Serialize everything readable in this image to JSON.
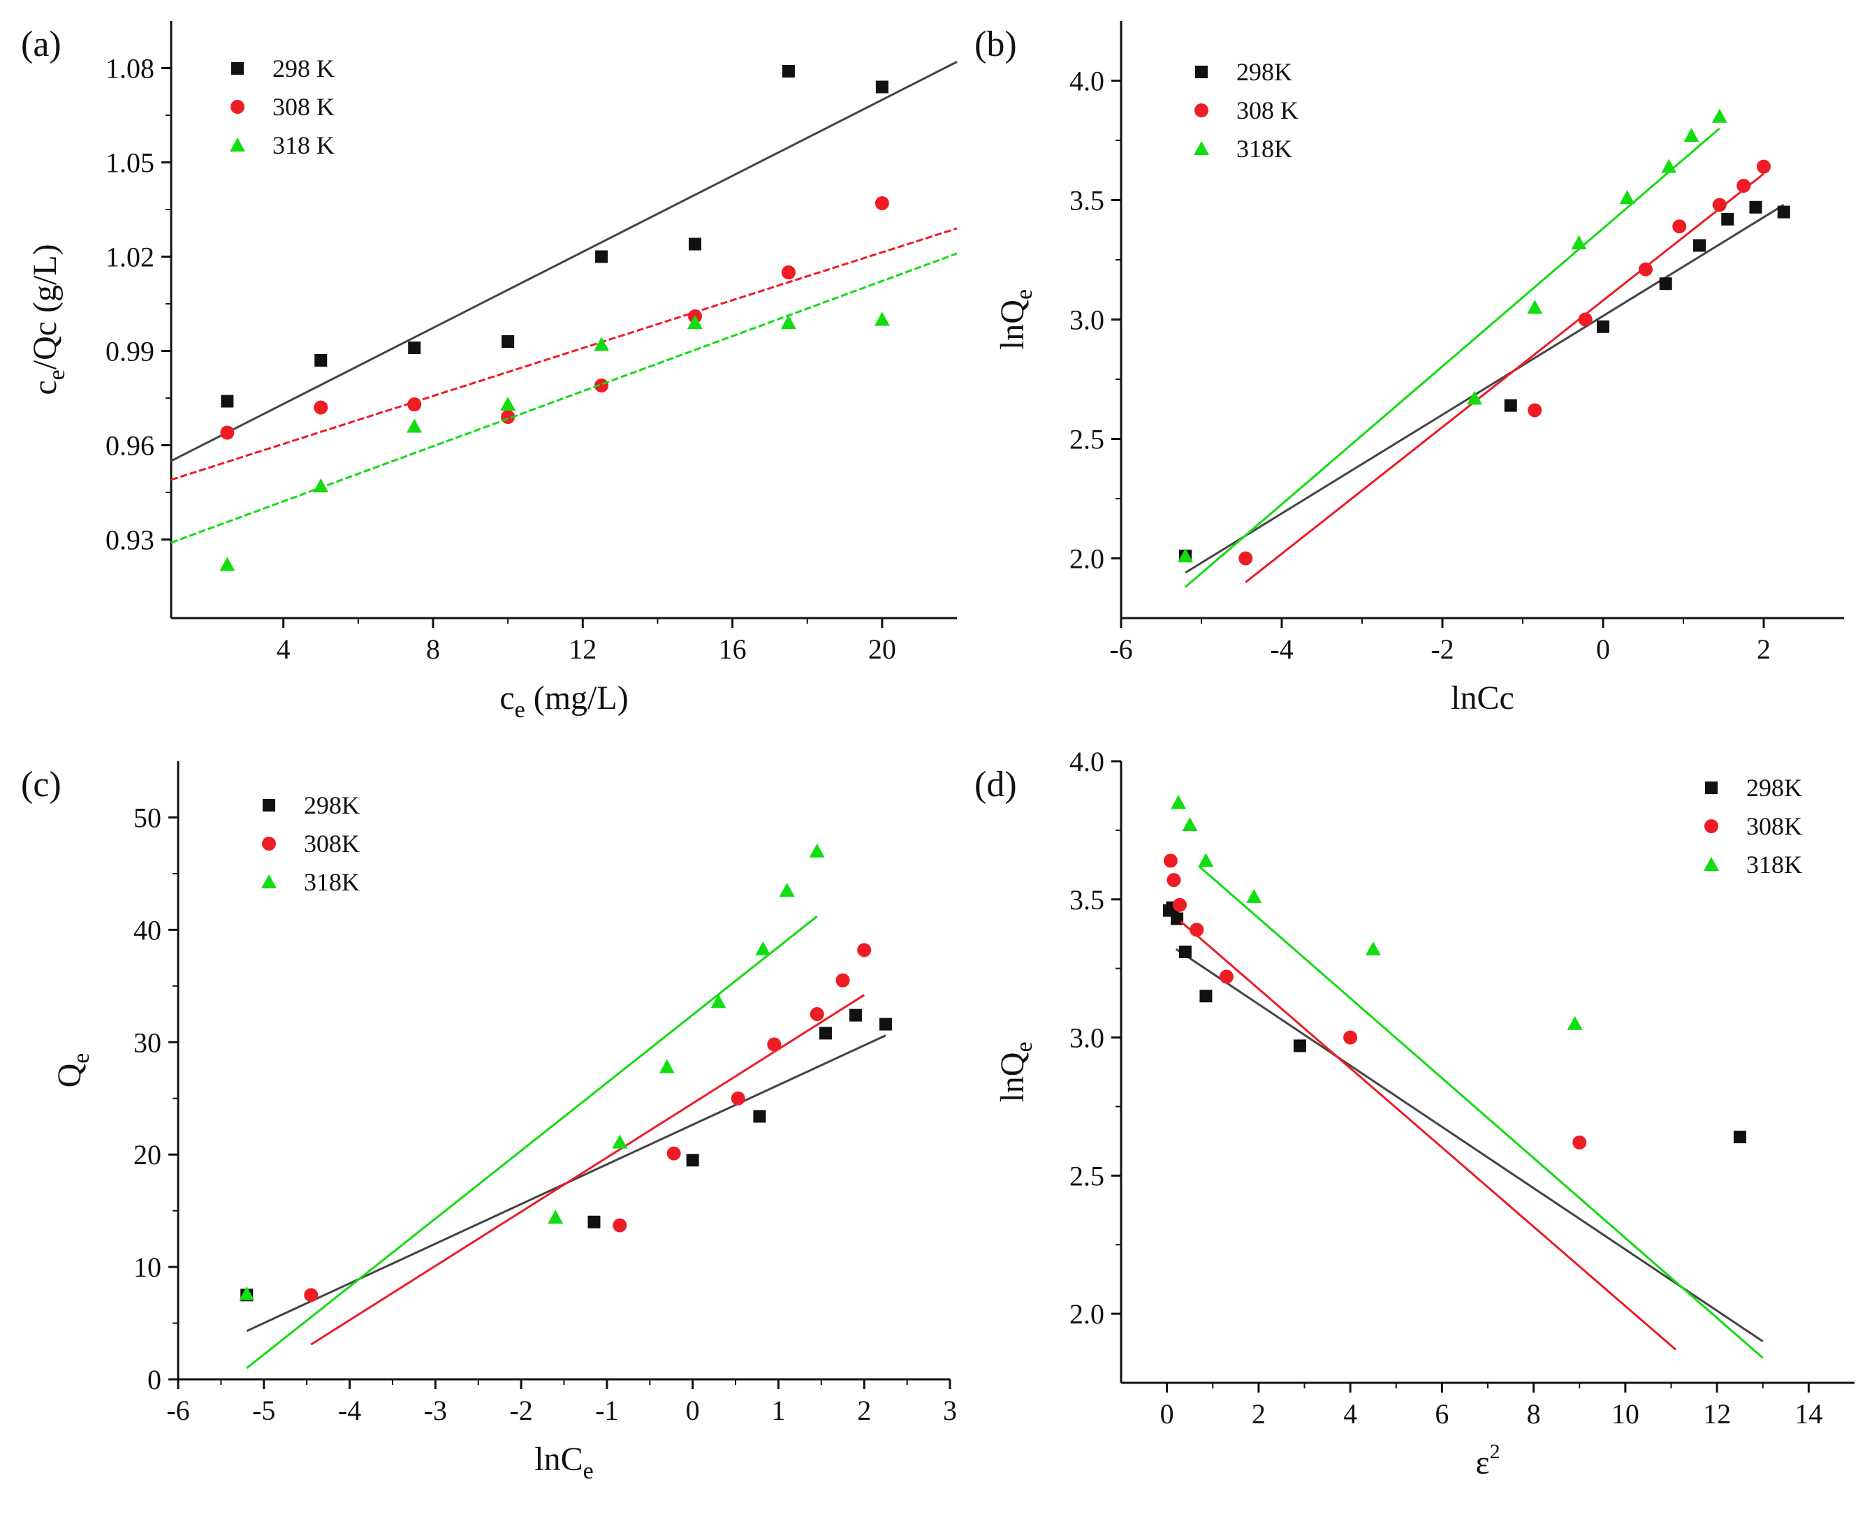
{
  "colors": {
    "k298": "#111111",
    "k308": "#ee1c24",
    "k318": "#11dd11",
    "fit298": "#444444"
  },
  "chart_data": [
    {
      "panel": "(a)",
      "type": "scatter",
      "xlabel_main": "c",
      "xlabel_sub": "e",
      "xlabel_rest": " (mg/L)",
      "ylabel_main": "c",
      "ylabel_sub": "e",
      "ylabel_rest": "/Qc (g/L)",
      "xlim": [
        1,
        22
      ],
      "ylim": [
        0.905,
        1.095
      ],
      "xticks": [
        4,
        8,
        12,
        16,
        20
      ],
      "xtick_labels": [
        "4",
        "8",
        "12",
        "16",
        "20"
      ],
      "yticks": [
        0.93,
        0.96,
        0.99,
        1.02,
        1.05,
        1.08
      ],
      "ytick_labels": [
        "0.93",
        "0.96",
        "0.99",
        "1.02",
        "1.05",
        "1.08"
      ],
      "legend_position": "top-left",
      "series": [
        {
          "name": "298 K",
          "color_key": "k298",
          "marker": "square",
          "x": [
            2.5,
            5,
            7.5,
            10,
            12.5,
            15,
            17.5,
            20
          ],
          "y": [
            0.974,
            0.987,
            0.991,
            0.993,
            1.02,
            1.024,
            1.079,
            1.074
          ],
          "fit": [
            [
              1,
              0.955
            ],
            [
              22,
              1.082
            ]
          ]
        },
        {
          "name": "308 K",
          "color_key": "k308",
          "marker": "circle",
          "x": [
            2.5,
            5,
            7.5,
            10,
            12.5,
            15,
            17.5,
            20
          ],
          "y": [
            0.964,
            0.972,
            0.973,
            0.969,
            0.979,
            1.001,
            1.015,
            1.037
          ],
          "fit": [
            [
              1,
              0.949
            ],
            [
              22,
              1.029
            ]
          ]
        },
        {
          "name": "318 K",
          "color_key": "k318",
          "marker": "triangle",
          "x": [
            2.5,
            5,
            7.5,
            10,
            12.5,
            15,
            17.5,
            20
          ],
          "y": [
            0.922,
            0.947,
            0.966,
            0.973,
            0.992,
            0.999,
            0.999,
            1.0
          ],
          "fit": [
            [
              1,
              0.929
            ],
            [
              22,
              1.021
            ]
          ]
        }
      ]
    },
    {
      "panel": "(b)",
      "type": "scatter",
      "xlabel_main": "lnC",
      "xlabel_sub": "",
      "xlabel_rest": "",
      "ylabel_main": "lnQ",
      "ylabel_sub": "e",
      "ylabel_rest": "",
      "xlim": [
        -6,
        3
      ],
      "ylim": [
        1.75,
        4.25
      ],
      "xticks": [
        -6,
        -4,
        -2,
        0,
        2
      ],
      "xtick_labels": [
        "-6",
        "-4",
        "-2",
        "0",
        "2"
      ],
      "yticks": [
        2.0,
        2.5,
        3.0,
        3.5,
        4.0
      ],
      "ytick_labels": [
        "2.0",
        "2.5",
        "3.0",
        "3.5",
        "4.0"
      ],
      "xlabel_display": "lnCc",
      "legend_position": "top-left",
      "series": [
        {
          "name": "298K",
          "color_key": "k298",
          "marker": "square",
          "x": [
            -5.2,
            -1.15,
            0,
            0.78,
            1.2,
            1.55,
            1.9,
            2.25
          ],
          "y": [
            2.01,
            2.64,
            2.97,
            3.15,
            3.31,
            3.42,
            3.47,
            3.45
          ],
          "fit": [
            [
              -5.2,
              1.94
            ],
            [
              2.25,
              3.48
            ]
          ]
        },
        {
          "name": "308 K",
          "color_key": "k308",
          "marker": "circle",
          "x": [
            -4.45,
            -0.85,
            -0.22,
            0.53,
            0.95,
            1.45,
            1.75,
            2.0
          ],
          "y": [
            2.0,
            2.62,
            3.0,
            3.21,
            3.39,
            3.48,
            3.56,
            3.64
          ],
          "fit": [
            [
              -4.45,
              1.9
            ],
            [
              2.0,
              3.61
            ]
          ]
        },
        {
          "name": "318K",
          "color_key": "k318",
          "marker": "triangle",
          "x": [
            -5.2,
            -1.6,
            -0.85,
            -0.3,
            0.3,
            0.82,
            1.1,
            1.45
          ],
          "y": [
            2.01,
            2.67,
            3.05,
            3.32,
            3.51,
            3.64,
            3.77,
            3.85
          ],
          "fit": [
            [
              -5.2,
              1.88
            ],
            [
              1.45,
              3.8
            ]
          ]
        }
      ]
    },
    {
      "panel": "(c)",
      "type": "scatter",
      "xlabel_main": "lnC",
      "xlabel_sub": "e",
      "xlabel_rest": "",
      "ylabel_main": "Q",
      "ylabel_sub": "e",
      "ylabel_rest": "",
      "xlim": [
        -6,
        3
      ],
      "ylim": [
        0,
        55
      ],
      "xticks": [
        -6,
        -5,
        -4,
        -3,
        -2,
        -1,
        0,
        1,
        2,
        3
      ],
      "xtick_labels": [
        "-6",
        "-5",
        "-4",
        "-3",
        "-2",
        "-1",
        "0",
        "1",
        "2",
        "3"
      ],
      "yticks": [
        0,
        10,
        20,
        30,
        40,
        50
      ],
      "ytick_labels": [
        "0",
        "10",
        "20",
        "30",
        "40",
        "50"
      ],
      "legend_position": "top-left",
      "series": [
        {
          "name": "298K",
          "color_key": "k298",
          "marker": "square",
          "x": [
            -5.2,
            -1.15,
            0,
            0.78,
            1.55,
            1.9,
            2.25
          ],
          "y": [
            7.5,
            14,
            19.5,
            23.4,
            30.8,
            32.4,
            31.6
          ],
          "fit": [
            [
              -5.2,
              4.3
            ],
            [
              2.25,
              30.6
            ]
          ]
        },
        {
          "name": "308K",
          "color_key": "k308",
          "marker": "circle",
          "x": [
            -4.45,
            -0.85,
            -0.22,
            0.53,
            0.95,
            1.45,
            1.75,
            2.0
          ],
          "y": [
            7.5,
            13.7,
            20.1,
            25,
            29.8,
            32.5,
            35.5,
            38.2
          ],
          "fit": [
            [
              -4.45,
              3.1
            ],
            [
              2.0,
              34.2
            ]
          ]
        },
        {
          "name": "318K",
          "color_key": "k318",
          "marker": "triangle",
          "x": [
            -5.2,
            -1.6,
            -0.85,
            -0.3,
            0.3,
            0.82,
            1.1,
            1.45
          ],
          "y": [
            7.6,
            14.4,
            21.1,
            27.8,
            33.6,
            38.3,
            43.5,
            47
          ],
          "fit": [
            [
              -5.2,
              1.0
            ],
            [
              1.45,
              41.2
            ]
          ]
        }
      ]
    },
    {
      "panel": "(d)",
      "type": "scatter",
      "xlabel_main": "ε",
      "xlabel_sub": "",
      "xlabel_sup": "2",
      "xlabel_rest": "",
      "ylabel_main": "lnQ",
      "ylabel_sub": "e",
      "ylabel_rest": "",
      "xlim": [
        -1,
        15
      ],
      "ylim": [
        1.75,
        4.0
      ],
      "xticks": [
        0,
        2,
        4,
        6,
        8,
        10,
        12,
        14
      ],
      "xtick_labels": [
        "0",
        "2",
        "4",
        "6",
        "8",
        "10",
        "12",
        "14"
      ],
      "yticks": [
        2.0,
        2.5,
        3.0,
        3.5,
        4.0
      ],
      "ytick_labels": [
        "2.0",
        "2.5",
        "3.0",
        "3.5",
        "4.0"
      ],
      "legend_position": "top-right",
      "series": [
        {
          "name": "298K",
          "color_key": "k298",
          "marker": "square",
          "x": [
            0.05,
            0.12,
            0.22,
            0.4,
            0.85,
            2.9,
            12.5
          ],
          "y": [
            3.46,
            3.47,
            3.43,
            3.31,
            3.15,
            2.97,
            2.64
          ],
          "fit": [
            [
              0.2,
              3.32
            ],
            [
              13,
              1.9
            ]
          ]
        },
        {
          "name": "308K",
          "color_key": "k308",
          "marker": "circle",
          "x": [
            0.08,
            0.15,
            0.28,
            0.65,
            1.3,
            4.0,
            9.0
          ],
          "y": [
            3.64,
            3.57,
            3.48,
            3.39,
            3.22,
            3.0,
            2.62
          ],
          "fit": [
            [
              0.3,
              3.42
            ],
            [
              11.1,
              1.87
            ]
          ]
        },
        {
          "name": "318K",
          "color_key": "k318",
          "marker": "triangle",
          "x": [
            0.25,
            0.5,
            0.85,
            1.9,
            4.5,
            8.9
          ],
          "y": [
            3.85,
            3.77,
            3.64,
            3.51,
            3.32,
            3.05
          ],
          "fit": [
            [
              0.7,
              3.62
            ],
            [
              13,
              1.84
            ]
          ]
        }
      ]
    }
  ]
}
